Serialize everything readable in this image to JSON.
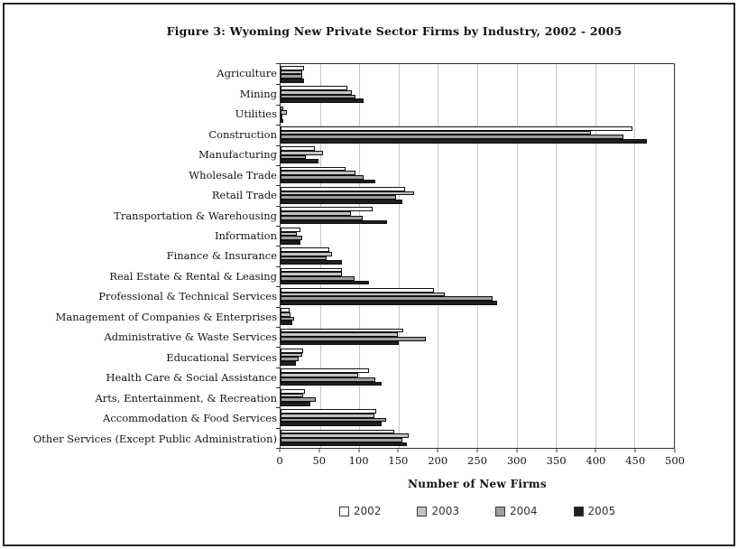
{
  "title": "Figure 3: Wyoming New Private Sector Firms by Industry, 2002 - 2005",
  "chart_data": {
    "type": "bar",
    "orientation": "horizontal",
    "title": "Figure 3: Wyoming New Private Sector Firms by Industry, 2002 - 2005",
    "xlabel": "Number of New Firms",
    "xlim": [
      0,
      500
    ],
    "xticks": [
      0,
      50,
      100,
      150,
      200,
      250,
      300,
      350,
      400,
      450,
      500
    ],
    "grid": true,
    "legend_position": "bottom",
    "categories": [
      "Agriculture",
      "Mining",
      "Utilities",
      "Construction",
      "Manufacturing",
      "Wholesale Trade",
      "Retail Trade",
      "Transportation & Warehousing",
      "Information",
      "Finance & Insurance",
      "Real Estate & Rental & Leasing",
      "Professional & Technical Services",
      "Management of Companies & Enterprises",
      "Administrative & Waste Services",
      "Educational Services",
      "Health Care & Social Assistance",
      "Arts, Entertainment, & Recreation",
      "Accommodation & Food Services",
      "Other Services (Except Public Administration)"
    ],
    "series": [
      {
        "name": "2002",
        "color": "#ffffff",
        "values": [
          30,
          85,
          4,
          447,
          44,
          83,
          158,
          117,
          25,
          62,
          78,
          195,
          11,
          156,
          29,
          112,
          31,
          121,
          144
        ]
      },
      {
        "name": "2003",
        "color": "#c3c3c3",
        "values": [
          27,
          91,
          8,
          395,
          54,
          95,
          170,
          90,
          21,
          65,
          78,
          209,
          13,
          149,
          27,
          99,
          29,
          119,
          163
        ]
      },
      {
        "name": "2004",
        "color": "#9e9e9e",
        "values": [
          28,
          95,
          2,
          436,
          32,
          105,
          147,
          104,
          28,
          58,
          94,
          270,
          17,
          185,
          23,
          120,
          45,
          134,
          155
        ]
      },
      {
        "name": "2005",
        "color": "#1f1f1f",
        "values": [
          30,
          105,
          3,
          466,
          48,
          120,
          155,
          135,
          25,
          78,
          112,
          275,
          15,
          150,
          20,
          128,
          38,
          129,
          160
        ]
      }
    ],
    "colors": {
      "grid": "#c7c7c7",
      "bar_border": "#101010",
      "axis": "#333333"
    }
  }
}
